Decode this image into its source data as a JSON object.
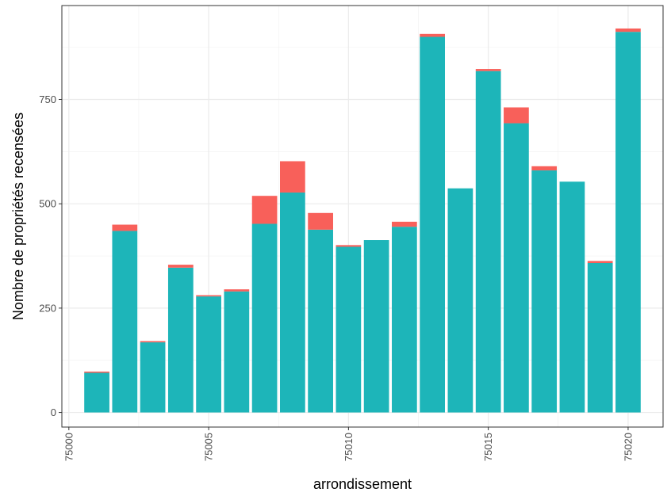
{
  "chart_data": {
    "type": "bar",
    "stacked": true,
    "title": "",
    "xlabel": "arrondissement",
    "ylabel": "Nombre de propriétés recensées",
    "x": [
      75001,
      75002,
      75003,
      75004,
      75005,
      75006,
      75007,
      75008,
      75009,
      75010,
      75011,
      75012,
      75013,
      75014,
      75015,
      75016,
      75017,
      75018,
      75019,
      75020
    ],
    "series": [
      {
        "values": [
          95,
          435,
          168,
          347,
          278,
          290,
          452,
          527,
          438,
          397,
          413,
          445,
          900,
          537,
          818,
          693,
          580,
          553,
          358,
          912
        ],
        "color": "#1db5b9"
      },
      {
        "values": [
          3,
          15,
          3,
          7,
          3,
          5,
          67,
          75,
          40,
          4,
          0,
          12,
          7,
          0,
          5,
          38,
          10,
          0,
          5,
          8
        ],
        "color": "#f8605a"
      }
    ],
    "xlim": [
      74999.75,
      75021.25
    ],
    "ylim": [
      -35,
      975
    ],
    "xticks": [
      "75000",
      "75005",
      "75010",
      "75015",
      "75020"
    ],
    "yticks": [
      "0",
      "250",
      "500",
      "750"
    ],
    "grid": true,
    "legend": "none",
    "theme": "bw"
  }
}
